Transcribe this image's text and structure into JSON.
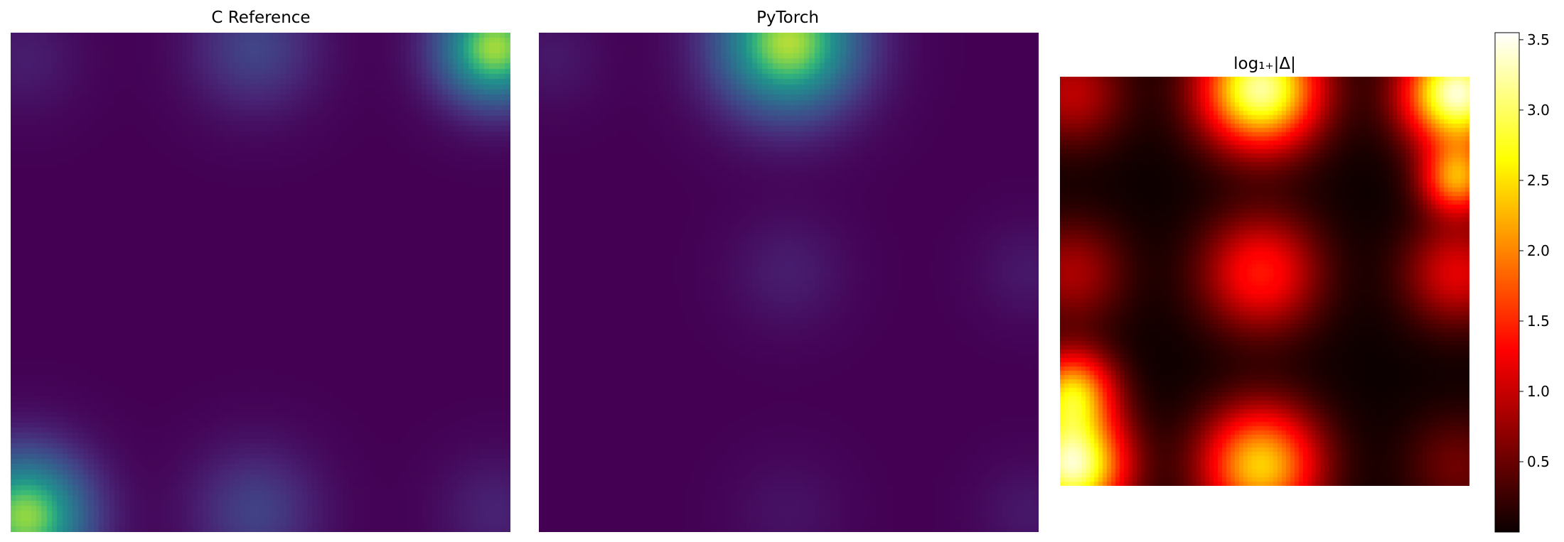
{
  "figure": {
    "background": "#ffffff"
  },
  "chart_data": [
    {
      "type": "heatmap",
      "title": "C Reference",
      "colormap": "viridis",
      "axes": "off",
      "grid": false,
      "blobs": [
        {
          "cx": 0.03,
          "cy": 0.97,
          "intensity": 0.88,
          "width": 0.09
        },
        {
          "cx": 0.97,
          "cy": 0.03,
          "intensity": 0.9,
          "width": 0.08
        },
        {
          "cx": 0.49,
          "cy": 0.03,
          "intensity": 0.25,
          "width": 0.09
        },
        {
          "cx": 0.49,
          "cy": 0.96,
          "intensity": 0.24,
          "width": 0.09
        },
        {
          "cx": 0.97,
          "cy": 0.96,
          "intensity": 0.12,
          "width": 0.08
        },
        {
          "cx": 0.03,
          "cy": 0.05,
          "intensity": 0.1,
          "width": 0.08
        }
      ]
    },
    {
      "type": "heatmap",
      "title": "PyTorch",
      "colormap": "viridis",
      "axes": "off",
      "grid": false,
      "blobs": [
        {
          "cx": 0.5,
          "cy": 0.02,
          "intensity": 0.92,
          "width": 0.1
        },
        {
          "cx": 0.5,
          "cy": 0.48,
          "intensity": 0.1,
          "width": 0.08
        },
        {
          "cx": 0.98,
          "cy": 0.48,
          "intensity": 0.08,
          "width": 0.07
        },
        {
          "cx": 0.5,
          "cy": 0.96,
          "intensity": 0.06,
          "width": 0.08
        },
        {
          "cx": 0.98,
          "cy": 0.96,
          "intensity": 0.08,
          "width": 0.07
        },
        {
          "cx": 0.03,
          "cy": 0.05,
          "intensity": 0.08,
          "width": 0.07
        }
      ]
    },
    {
      "type": "heatmap",
      "title": "log₁₊|Δ|",
      "colormap": "hot",
      "axes": "off",
      "grid": false,
      "vmin": 0,
      "vmax": 3.55,
      "colorbar": {
        "ticks": [
          0.5,
          1.0,
          1.5,
          2.0,
          2.5,
          3.0,
          3.5
        ],
        "tick_labels": [
          "0.5",
          "1.0",
          "1.5",
          "2.0",
          "2.5",
          "3.0",
          "3.5"
        ]
      },
      "blobs": [
        {
          "cx": 0.97,
          "cy": 0.04,
          "value": 3.4,
          "width": 0.09
        },
        {
          "cx": 0.49,
          "cy": 0.03,
          "value": 3.2,
          "width": 0.1
        },
        {
          "cx": 0.03,
          "cy": 0.95,
          "value": 3.3,
          "width": 0.09
        },
        {
          "cx": 0.49,
          "cy": 0.95,
          "value": 2.4,
          "width": 0.1
        },
        {
          "cx": 0.49,
          "cy": 0.48,
          "value": 1.4,
          "width": 0.1
        },
        {
          "cx": 0.97,
          "cy": 0.48,
          "value": 1.1,
          "width": 0.09
        },
        {
          "cx": 0.03,
          "cy": 0.48,
          "value": 0.8,
          "width": 0.09
        },
        {
          "cx": 0.03,
          "cy": 0.04,
          "value": 0.9,
          "width": 0.09
        },
        {
          "cx": 0.97,
          "cy": 0.95,
          "value": 0.5,
          "width": 0.09
        },
        {
          "cx": 0.03,
          "cy": 0.77,
          "value": 2.2,
          "width": 0.07
        },
        {
          "cx": 0.97,
          "cy": 0.25,
          "value": 2.0,
          "width": 0.06
        }
      ]
    }
  ]
}
